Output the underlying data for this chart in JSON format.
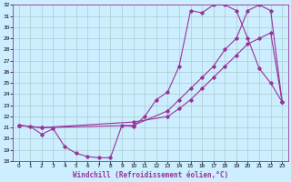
{
  "xlabel": "Windchill (Refroidissement éolien,°C)",
  "bg_color": "#cceeff",
  "line_color": "#993399",
  "grid_color": "#aacccc",
  "xlim": [
    -0.5,
    23.5
  ],
  "ylim": [
    18,
    32
  ],
  "xticks": [
    0,
    1,
    2,
    3,
    4,
    5,
    6,
    7,
    8,
    9,
    10,
    11,
    12,
    13,
    14,
    15,
    16,
    17,
    18,
    19,
    20,
    21,
    22,
    23
  ],
  "yticks": [
    18,
    19,
    20,
    21,
    22,
    23,
    24,
    25,
    26,
    27,
    28,
    29,
    30,
    31,
    32
  ],
  "series1_x": [
    0,
    1,
    2,
    3,
    4,
    5,
    6,
    7,
    8,
    9,
    10,
    11,
    12,
    13,
    14,
    15,
    16,
    17,
    18,
    19,
    20,
    21,
    22,
    23
  ],
  "series1_y": [
    21.2,
    21.1,
    20.4,
    20.9,
    19.3,
    18.7,
    18.4,
    18.3,
    18.3,
    21.2,
    21.1,
    22.0,
    23.5,
    24.2,
    26.5,
    31.5,
    31.3,
    32.0,
    32.0,
    31.5,
    29.0,
    26.3,
    25.0,
    23.3
  ],
  "series2_x": [
    0,
    2,
    10,
    13,
    14,
    15,
    16,
    17,
    18,
    19,
    20,
    21,
    22,
    23
  ],
  "series2_y": [
    21.2,
    21.0,
    21.5,
    22.0,
    22.7,
    23.5,
    24.5,
    25.5,
    26.5,
    27.5,
    28.5,
    29.0,
    29.5,
    23.3
  ],
  "series3_x": [
    0,
    2,
    10,
    13,
    14,
    15,
    16,
    17,
    18,
    19,
    20,
    21,
    22,
    23
  ],
  "series3_y": [
    21.2,
    21.0,
    21.2,
    22.5,
    23.5,
    24.5,
    25.5,
    26.5,
    28.0,
    29.0,
    31.5,
    32.0,
    31.5,
    23.3
  ]
}
